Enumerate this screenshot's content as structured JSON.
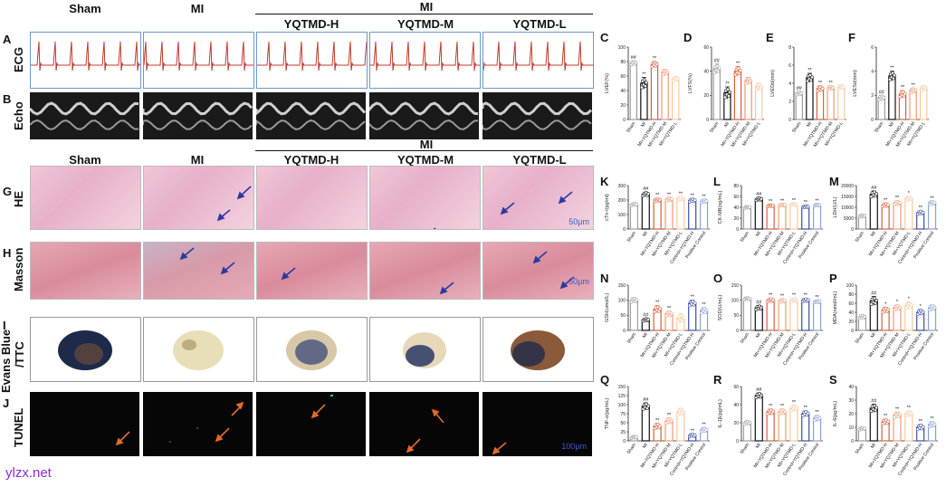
{
  "panel_letters": {
    "A": "A",
    "B": "B",
    "C": "C",
    "D": "D",
    "E": "E",
    "F": "F",
    "G": "G",
    "H": "H",
    "I": "I",
    "J": "J",
    "K": "K",
    "L": "L",
    "M": "M",
    "N": "N",
    "O": "O",
    "P": "P",
    "Q": "Q",
    "R": "R",
    "S": "S"
  },
  "row_labels": {
    "ecg": "ECG",
    "echo": "Echo",
    "he": "HE",
    "masson": "Masson",
    "ttc_line1": "Evans Blue",
    "ttc_line2": "/TTC",
    "tunel": "TUNEL"
  },
  "top_headers": {
    "sham": "Sham",
    "mi": "MI",
    "mi_group": "MI",
    "h": "YQTMD-H",
    "m": "YQTMD-M",
    "l": "YQTMD-L"
  },
  "histo_headers": {
    "sham": "Sham",
    "mi": "MI",
    "mi_group": "MI",
    "h": "YQTMD-H",
    "m": "YQTMD-M",
    "l": "YQTMD-L"
  },
  "scale_bars": {
    "he": "50μm",
    "masson": "50μm",
    "tunel": "100μm"
  },
  "watermark": "ylzx.net",
  "colors": {
    "sham": "#9e9e9e",
    "mi": "#111111",
    "high": "#d9603b",
    "mid": "#f09a73",
    "low": "#f5c9a0",
    "control": "#3b4fa3",
    "positive": "#8c9fcc"
  },
  "chart_data": [
    {
      "id": "C",
      "type": "bar",
      "ylabel": "LVEF(%)",
      "ylim": [
        0,
        100
      ],
      "yticks": [
        0,
        20,
        40,
        60,
        80,
        100
      ],
      "categories": [
        "Sham",
        "MI",
        "MI+YQTMD-H",
        "MI+YQTMD-M",
        "MI+YQTMD-L"
      ],
      "values": [
        78,
        50,
        76,
        65,
        56
      ],
      "errors": [
        3,
        8,
        4,
        4,
        3
      ],
      "annotations": [
        "##",
        "**",
        "**"
      ]
    },
    {
      "id": "D",
      "type": "bar",
      "ylabel": "LVFS(%)",
      "ylim": [
        0,
        60
      ],
      "yticks": [
        0,
        20,
        40,
        60
      ],
      "categories": [
        "Sham",
        "MI",
        "MI+YQTMD-H",
        "MI+YQTMD-M",
        "MI+YQTMD-L"
      ],
      "values": [
        42,
        22,
        40,
        32,
        27
      ],
      "errors": [
        4,
        5,
        4,
        3,
        3
      ],
      "annotations": [
        "##",
        "**",
        "**"
      ]
    },
    {
      "id": "E",
      "type": "bar",
      "ylabel": "LVEDd(mm)",
      "ylim": [
        0,
        8
      ],
      "yticks": [
        0,
        2,
        4,
        6,
        8
      ],
      "categories": [
        "Sham",
        "MI",
        "MI+YQTMD-H",
        "MI+YQTMD-M",
        "MI+YQTMD-L"
      ],
      "values": [
        2.9,
        4.6,
        3.4,
        3.5,
        3.6
      ],
      "errors": [
        0.2,
        0.5,
        0.3,
        0.2,
        0.2
      ],
      "annotations": [
        "##",
        "**",
        "**",
        "**"
      ]
    },
    {
      "id": "F",
      "type": "bar",
      "ylabel": "LVESd(mm)",
      "ylim": [
        0,
        6
      ],
      "yticks": [
        0,
        2,
        4,
        6
      ],
      "categories": [
        "Sham",
        "MI",
        "MI+YQTMD-H",
        "MI+YQTMD-M",
        "MI+YQTMD-L"
      ],
      "values": [
        1.8,
        3.6,
        2.1,
        2.4,
        2.6
      ],
      "errors": [
        0.2,
        0.4,
        0.3,
        0.2,
        0.2
      ],
      "annotations": [
        "##",
        "**",
        "**",
        "**"
      ]
    },
    {
      "id": "K",
      "type": "bar",
      "ylabel": "cTn-I(pg/ml)",
      "ylim": [
        0,
        300
      ],
      "yticks": [
        0,
        100,
        200,
        300
      ],
      "categories": [
        "Sham",
        "MI",
        "MI+YQTMD-H",
        "MI+YQTMD-M",
        "MI+YQTMD-L",
        "Control+YQTMD-H",
        "Positive Control"
      ],
      "values": [
        170,
        240,
        200,
        205,
        210,
        198,
        192
      ],
      "errors": [
        10,
        15,
        12,
        12,
        12,
        12,
        12
      ],
      "annotations": [
        "",
        "##",
        "**",
        "**",
        "**",
        "**",
        "**"
      ]
    },
    {
      "id": "L",
      "type": "bar",
      "ylabel": "CK-MB(ng/mL)",
      "ylim": [
        0,
        80
      ],
      "yticks": [
        0,
        20,
        40,
        60,
        80
      ],
      "categories": [
        "Sham",
        "MI",
        "MI+YQTMD-H",
        "MI+YQTMD-M",
        "MI+YQTMD-L",
        "Control+YQTMD-H",
        "Positive Control"
      ],
      "values": [
        40,
        55,
        43,
        44,
        45,
        41,
        44
      ],
      "errors": [
        2,
        3,
        2,
        2,
        2,
        2,
        2
      ],
      "annotations": [
        "",
        "##",
        "**",
        "**",
        "**",
        "**",
        "**"
      ]
    },
    {
      "id": "M",
      "type": "bar",
      "ylabel": "LDH(U/L)",
      "ylim": [
        0,
        20000
      ],
      "yticks": [
        0,
        5000,
        10000,
        15000,
        20000
      ],
      "categories": [
        "Sham",
        "MI",
        "MI+YQTMD-H",
        "MI+YQTMD-M",
        "MI+YQTMD-L",
        "Control+YQTMD-H",
        "Positive Control"
      ],
      "values": [
        6000,
        16000,
        11000,
        12000,
        14000,
        7500,
        12000
      ],
      "errors": [
        600,
        1500,
        900,
        900,
        900,
        900,
        800
      ],
      "annotations": [
        "",
        "##",
        "**",
        "**",
        "*",
        "**",
        "**"
      ]
    },
    {
      "id": "N",
      "type": "bar",
      "ylabel": "GSH(umol/L)",
      "ylim": [
        0,
        150
      ],
      "yticks": [
        0,
        50,
        100,
        150
      ],
      "categories": [
        "Sham",
        "MI",
        "MI+YQTMD-H",
        "MI+YQTMD-M",
        "MI+YQTMD-L",
        "Control+YQTMD-H",
        "Positive Control"
      ],
      "values": [
        100,
        35,
        70,
        55,
        40,
        90,
        65
      ],
      "errors": [
        8,
        5,
        12,
        8,
        15,
        10,
        10
      ],
      "annotations": [
        "",
        "##",
        "**",
        "**",
        "",
        "**",
        "**"
      ]
    },
    {
      "id": "O",
      "type": "bar",
      "ylabel": "SOD(U/mL)",
      "ylim": [
        0,
        150
      ],
      "yticks": [
        0,
        50,
        100,
        150
      ],
      "categories": [
        "Sham",
        "MI",
        "MI+YQTMD-H",
        "MI+YQTMD-M",
        "MI+YQTMD-L",
        "Control+YQTMD-H",
        "Positive Control"
      ],
      "values": [
        105,
        75,
        100,
        98,
        100,
        100,
        95
      ],
      "errors": [
        4,
        8,
        6,
        6,
        6,
        6,
        4
      ],
      "annotations": [
        "",
        "##",
        "**",
        "**",
        "**",
        "**",
        "**"
      ]
    },
    {
      "id": "P",
      "type": "bar",
      "ylabel": "MDA(nmol/mL)",
      "ylim": [
        0,
        100
      ],
      "yticks": [
        0,
        20,
        40,
        60,
        80,
        100
      ],
      "categories": [
        "Sham",
        "MI",
        "MI+YQTMD-H",
        "MI+YQTMD-M",
        "MI+YQTMD-L",
        "Control+YQTMD-H",
        "Positive Control"
      ],
      "values": [
        30,
        65,
        45,
        50,
        55,
        40,
        50
      ],
      "errors": [
        4,
        10,
        6,
        6,
        8,
        6,
        6
      ],
      "annotations": [
        "",
        "##",
        "*",
        "*",
        "*",
        "*",
        ""
      ]
    },
    {
      "id": "Q",
      "type": "bar",
      "ylabel": "TNF-α(pg/mL)",
      "ylim": [
        0,
        150
      ],
      "yticks": [
        0,
        25,
        50,
        75,
        100,
        125,
        150
      ],
      "categories": [
        "Sham",
        "MI",
        "MI+YQTMD-H",
        "MI+YQTMD-M",
        "MI+YQTMD-L",
        "Control+YQTMD-H",
        "Positive Control"
      ],
      "values": [
        10,
        95,
        40,
        55,
        80,
        15,
        30
      ],
      "errors": [
        3,
        10,
        8,
        8,
        10,
        4,
        6
      ],
      "annotations": [
        "",
        "##",
        "**",
        "**",
        "",
        "**",
        "**"
      ]
    },
    {
      "id": "R",
      "type": "bar",
      "ylabel": "IL-1β(pg/mL)",
      "ylim": [
        0,
        60
      ],
      "yticks": [
        0,
        20,
        40,
        60
      ],
      "categories": [
        "Sham",
        "MI",
        "MI+YQTMD-H",
        "MI+YQTMD-M",
        "MI+YQTMD-L",
        "Control+YQTMD-H",
        "Positive Control"
      ],
      "values": [
        20,
        50,
        32,
        32,
        36,
        30,
        25
      ],
      "errors": [
        2,
        3,
        3,
        3,
        3,
        3,
        3
      ],
      "annotations": [
        "",
        "##",
        "**",
        "**",
        "**",
        "**",
        "**"
      ]
    },
    {
      "id": "S",
      "type": "bar",
      "ylabel": "IL-6(pg/mL)",
      "ylim": [
        0,
        40
      ],
      "yticks": [
        0,
        10,
        20,
        30,
        40
      ],
      "categories": [
        "Sham",
        "MI",
        "MI+YQTMD-H",
        "MI+YQTMD-M",
        "MI+YQTMD-L",
        "Control+YQTMD-H",
        "Positive Control"
      ],
      "values": [
        9,
        24,
        14,
        19,
        20,
        10,
        12
      ],
      "errors": [
        1,
        3,
        2,
        2,
        2,
        2,
        2
      ],
      "annotations": [
        "",
        "##",
        "**",
        "**",
        "**",
        "**",
        "**"
      ]
    }
  ]
}
